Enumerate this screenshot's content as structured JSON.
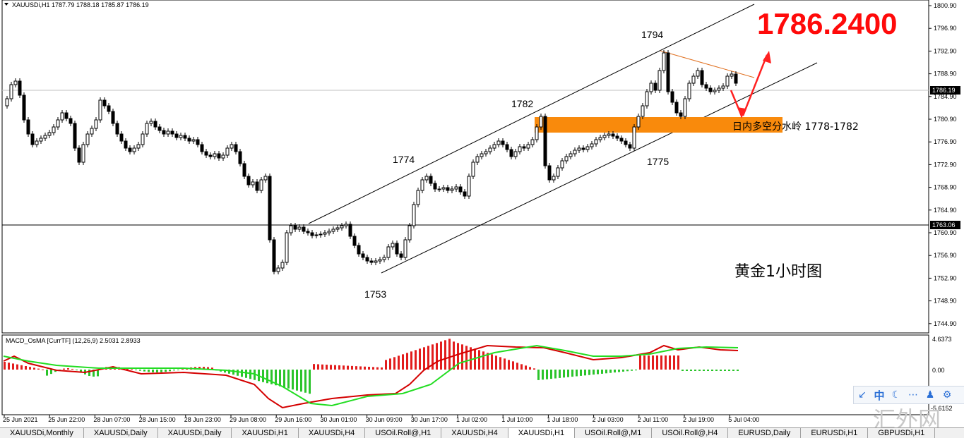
{
  "header": {
    "symbol_label": "XAUUSDi,H1",
    "ohlc": "1787.79 1788.18 1785.87 1786.19"
  },
  "price_axis": {
    "ticks": [
      "1800.90",
      "1796.90",
      "1792.90",
      "1788.90",
      "1784.90",
      "1780.90",
      "1776.90",
      "1772.90",
      "1768.90",
      "1764.90",
      "1760.90",
      "1756.90",
      "1752.90",
      "1748.90",
      "1744.90"
    ],
    "current_price": "1786.19",
    "level_price": "1763.06"
  },
  "time_axis": {
    "labels": [
      "25 Jun 2021",
      "25 Jun 22:00",
      "28 Jun 07:00",
      "28 Jun 15:00",
      "28 Jun 23:00",
      "29 Jun 08:00",
      "29 Jun 16:00",
      "30 Jun 01:00",
      "30 Jun 09:00",
      "30 Jun 17:00",
      "1 Jul 02:00",
      "1 Jul 10:00",
      "1 Jul 18:00",
      "2 Jul 03:00",
      "2 Jul 11:00",
      "2 Jul 19:00",
      "5 Jul 04:00"
    ]
  },
  "annotations": {
    "big_price": "1786.2400",
    "label_1794": "1794",
    "label_1782": "1782",
    "label_1774": "1774",
    "label_1775": "1775",
    "label_1753": "1753",
    "pivot_text": "日内多空分水岭  1778-1782",
    "chart_title": "黄金1小时图",
    "watermark": "汇外网"
  },
  "macd": {
    "header": "MACD_OsMA [CurrTF] (12,26,9) 2.5031 2.8933",
    "axis": [
      "4.6373",
      "0.00",
      "-5.6152"
    ]
  },
  "tabs": [
    {
      "label": "XAUUSDi,Monthly",
      "active": false
    },
    {
      "label": "XAUUSDi,Daily",
      "active": false
    },
    {
      "label": "XAUUSDi,Daily",
      "active": false
    },
    {
      "label": "XAUUSDi,H1",
      "active": false
    },
    {
      "label": "XAUUSDi,H4",
      "active": false
    },
    {
      "label": "USOil.Roll@,H1",
      "active": false
    },
    {
      "label": "XAUUSDi,H4",
      "active": false
    },
    {
      "label": "XAUUSDi,H1",
      "active": true
    },
    {
      "label": "USOil.Roll@,M1",
      "active": false
    },
    {
      "label": "USOil.Roll@,H4",
      "active": false
    },
    {
      "label": "EURUSD,Daily",
      "active": false
    },
    {
      "label": "EURUSDi,H1",
      "active": false
    },
    {
      "label": "GBPUSDi,H1",
      "active": false
    }
  ],
  "toolbar": {
    "cn_label": "中",
    "icons": [
      "arrow-icon",
      "language-icon",
      "moon-icon",
      "dots-icon",
      "user-icon",
      "gear-icon"
    ]
  },
  "colors": {
    "bull": "#ffffff",
    "bear": "#000000",
    "zone": "#f98a0c",
    "red_arrow": "#ff2020",
    "macd_hist_pos": "#e21d1d",
    "macd_hist_neg": "#2bc42b",
    "macd_line": "#d40000",
    "signal_line": "#22dd22"
  }
}
